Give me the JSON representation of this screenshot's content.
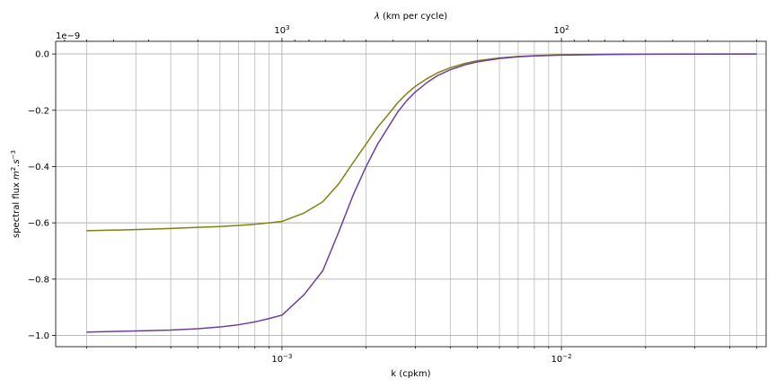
{
  "chart_data": {
    "type": "line",
    "xlabel": "k (cpkm)",
    "ylabel": "spectral flux m².s⁻³",
    "ylabel_parts": {
      "base": "spectral flux ",
      "m": "m",
      "m_exp": "2",
      "dot_s": ".s",
      "s_exp": "−3"
    },
    "top_xlabel": "λ (km per cycle)",
    "top_xlabel_parts": {
      "lambda": "λ",
      "rest": " (km per cycle)"
    },
    "y_offset_text": "1e−9",
    "x_scale": "log",
    "xlim": [
      0.000155,
      0.054
    ],
    "ylim": [
      -1.04e-09,
      4.5e-11
    ],
    "y_ticks": [
      0.0,
      -2e-10,
      -4e-10,
      -6e-10,
      -8e-10,
      -1e-09
    ],
    "y_tick_labels": [
      "0.0",
      "−0.2",
      "−0.4",
      "−0.6",
      "−0.8",
      "−1.0"
    ],
    "x_major_ticks": [
      0.001,
      0.01
    ],
    "x_major_tick_labels": [
      {
        "base": "10",
        "exp": "−3"
      },
      {
        "base": "10",
        "exp": "−2"
      }
    ],
    "top_major_ticks_km": [
      1000,
      100
    ],
    "top_major_tick_labels": [
      {
        "base": "10",
        "exp": "3"
      },
      {
        "base": "10",
        "exp": "2"
      }
    ],
    "grid": true,
    "series": [
      {
        "color": "#808010",
        "x": [
          0.0002,
          0.0003,
          0.0004,
          0.0005,
          0.0006,
          0.0007,
          0.0008,
          0.0009,
          0.001,
          0.0012,
          0.0014,
          0.0016,
          0.0018,
          0.002,
          0.0022,
          0.0024,
          0.0026,
          0.0028,
          0.003,
          0.0033,
          0.0036,
          0.004,
          0.0045,
          0.005,
          0.006,
          0.007,
          0.008,
          0.01,
          0.015,
          0.02,
          0.03,
          0.05
        ],
        "y": [
          -6.28e-10,
          -6.24e-10,
          -6.2e-10,
          -6.16e-10,
          -6.13e-10,
          -6.09e-10,
          -6.05e-10,
          -6e-10,
          -5.95e-10,
          -5.65e-10,
          -5.25e-10,
          -4.6e-10,
          -3.85e-10,
          -3.2e-10,
          -2.6e-10,
          -2.15e-10,
          -1.72e-10,
          -1.4e-10,
          -1.15e-10,
          -8.8e-11,
          -6.7e-11,
          -4.9e-11,
          -3.4e-11,
          -2.4e-11,
          -1.4e-11,
          -9e-12,
          -6e-12,
          -3e-12,
          -1e-12,
          -5e-13,
          -2e-13,
          -1e-13
        ]
      },
      {
        "color": "#6b3fa0",
        "x": [
          0.0002,
          0.0003,
          0.0004,
          0.0005,
          0.0006,
          0.0007,
          0.0008,
          0.0009,
          0.001,
          0.0012,
          0.0014,
          0.0016,
          0.0018,
          0.002,
          0.0022,
          0.0024,
          0.0026,
          0.0028,
          0.003,
          0.0033,
          0.0036,
          0.004,
          0.0045,
          0.005,
          0.006,
          0.007,
          0.008,
          0.01,
          0.015,
          0.02,
          0.03,
          0.05
        ],
        "y": [
          -9.88e-10,
          -9.84e-10,
          -9.81e-10,
          -9.76e-10,
          -9.7e-10,
          -9.62e-10,
          -9.52e-10,
          -9.4e-10,
          -9.28e-10,
          -8.55e-10,
          -7.7e-10,
          -6.3e-10,
          -5e-10,
          -4e-10,
          -3.2e-10,
          -2.6e-10,
          -2.05e-10,
          -1.65e-10,
          -1.35e-10,
          -1.02e-10,
          -7.7e-11,
          -5.6e-11,
          -3.9e-11,
          -2.8e-11,
          -1.6e-11,
          -1e-11,
          -7e-12,
          -4e-12,
          -1.5e-12,
          -7e-13,
          -3e-13,
          -1e-13
        ]
      }
    ]
  }
}
